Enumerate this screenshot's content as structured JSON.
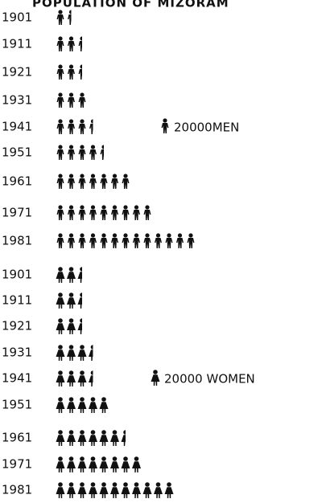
{
  "chart_data": {
    "type": "pictograph",
    "title": "POPULATION OF MIZORAM",
    "categories": [
      "1901",
      "1911",
      "1921",
      "1931",
      "1941",
      "1951",
      "1961",
      "1971",
      "1981"
    ],
    "icon_value": 20000,
    "series": [
      {
        "name": "20000MEN",
        "icon": "man",
        "color": "#111111",
        "values": [
          30000,
          50000,
          50000,
          60000,
          70000,
          90000,
          140000,
          180000,
          260000
        ]
      },
      {
        "name": "20000 WOMEN",
        "icon": "woman",
        "color": "#111111",
        "values": [
          50000,
          50000,
          50000,
          70000,
          70000,
          100000,
          130000,
          160000,
          220000
        ]
      }
    ]
  }
}
